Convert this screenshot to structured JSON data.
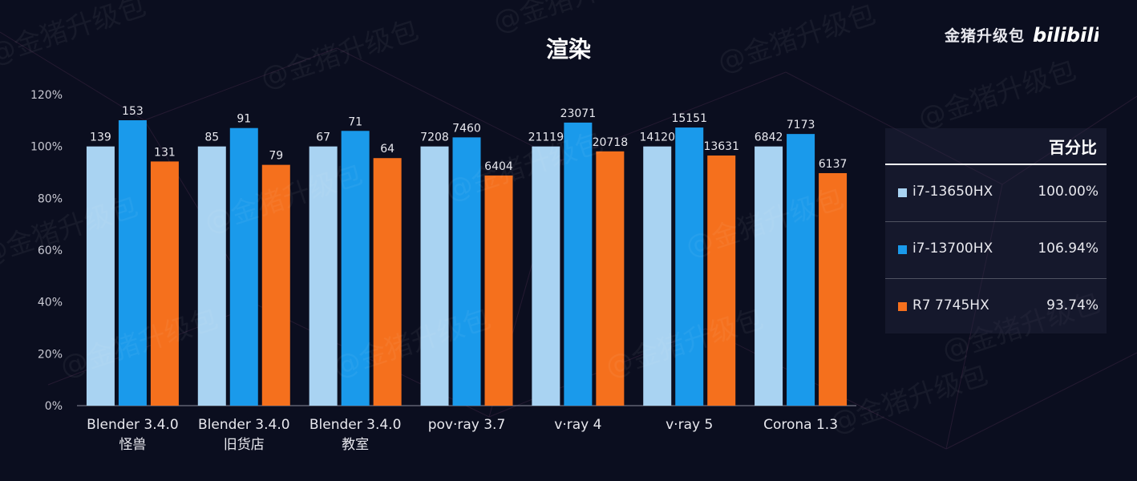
{
  "header": {
    "title": "渲染"
  },
  "brand": {
    "name": "金猪升级包",
    "logo": "bilibili"
  },
  "chart_data": {
    "type": "bar",
    "title": "渲染",
    "yaxis": {
      "min": 0,
      "max": 120,
      "step": 20,
      "unit": "%"
    },
    "categories": [
      {
        "line1": "Blender 3.4.0",
        "line2": "怪兽"
      },
      {
        "line1": "Blender 3.4.0",
        "line2": "旧货店"
      },
      {
        "line1": "Blender 3.4.0",
        "line2": "教室"
      },
      {
        "line1": "pov·ray 3.7",
        "line2": ""
      },
      {
        "line1": "v·ray 4",
        "line2": ""
      },
      {
        "line1": "v·ray 5",
        "line2": ""
      },
      {
        "line1": "Corona 1.3",
        "line2": ""
      }
    ],
    "series": [
      {
        "name": "i7-13650HX",
        "color": "#a9d3f2",
        "values": [
          100,
          100,
          100,
          100,
          100,
          100,
          100
        ],
        "labels": [
          "139",
          "85",
          "67",
          "7208",
          "21119",
          "14120",
          "6842"
        ]
      },
      {
        "name": "i7-13700HX",
        "color": "#1a9aeb",
        "values": [
          110.1,
          107.1,
          106.0,
          103.5,
          109.2,
          107.3,
          104.8
        ],
        "labels": [
          "153",
          "91",
          "71",
          "7460",
          "23071",
          "15151",
          "7173"
        ]
      },
      {
        "name": "R7 7745HX",
        "color": "#f5701d",
        "values": [
          94.2,
          92.9,
          95.5,
          88.8,
          98.1,
          96.5,
          89.7
        ],
        "labels": [
          "131",
          "79",
          "64",
          "6404",
          "20718",
          "13631",
          "6137"
        ]
      }
    ],
    "legend": {
      "header": "百分比",
      "placement": "right",
      "items": [
        {
          "name": "i7-13650HX",
          "value": "100.00%",
          "color": "#a9d3f2"
        },
        {
          "name": "i7-13700HX",
          "value": "106.94%",
          "color": "#1a9aeb"
        },
        {
          "name": "R7 7745HX",
          "value": "93.74%",
          "color": "#f5701d"
        }
      ]
    },
    "watermark": "@金猪升级包"
  }
}
